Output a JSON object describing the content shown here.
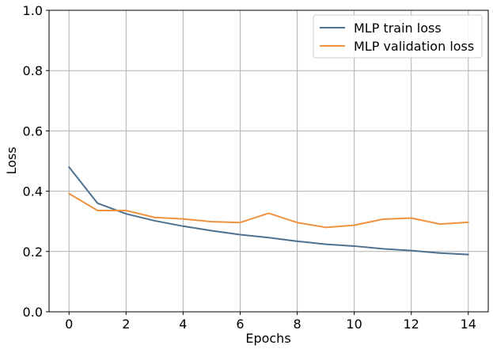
{
  "chart_data": {
    "type": "line",
    "title": "",
    "xlabel": "Epochs",
    "ylabel": "Loss",
    "xlim": [
      -0.7,
      14.7
    ],
    "ylim": [
      0,
      1
    ],
    "xticks": [
      0,
      2,
      4,
      6,
      8,
      10,
      12,
      14
    ],
    "yticks": [
      0.0,
      0.2,
      0.4,
      0.6,
      0.8,
      1.0
    ],
    "xtick_labels": [
      "0",
      "2",
      "4",
      "6",
      "8",
      "10",
      "12",
      "14"
    ],
    "ytick_labels": [
      "0.0",
      "0.2",
      "0.4",
      "0.6",
      "0.8",
      "1.0"
    ],
    "grid": true,
    "legend_position": "upper-right",
    "x": [
      0,
      1,
      2,
      3,
      4,
      5,
      6,
      7,
      8,
      9,
      10,
      11,
      12,
      13,
      14
    ],
    "series": [
      {
        "name": "MLP train loss",
        "color": "#4c7091",
        "values": [
          0.48,
          0.36,
          0.325,
          0.302,
          0.284,
          0.269,
          0.256,
          0.246,
          0.234,
          0.224,
          0.218,
          0.209,
          0.203,
          0.195,
          0.19
        ]
      },
      {
        "name": "MLP validation loss",
        "color": "#ee9240",
        "values": [
          0.392,
          0.336,
          0.336,
          0.313,
          0.308,
          0.299,
          0.296,
          0.327,
          0.296,
          0.28,
          0.287,
          0.307,
          0.311,
          0.291,
          0.297
        ]
      }
    ]
  }
}
